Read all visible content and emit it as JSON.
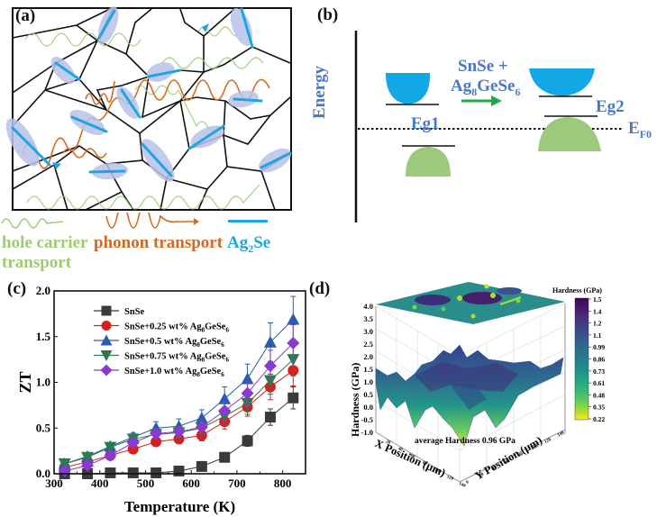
{
  "panels": {
    "a": {
      "label": "(a)",
      "legend": {
        "hole": "hole carrier",
        "hole2": "transport",
        "phonon": "phonon transport",
        "ag2se_main": "Ag",
        "ag2se_sub": "2",
        "ag2se_tail": "Se"
      },
      "colors": {
        "hole": "#9dcb74",
        "phonon": "#d46a1f",
        "ag2se": "#1fa6e0",
        "halo": "#b9c3ea"
      }
    },
    "b": {
      "label": "(b)",
      "y_axis_label": "Energy",
      "reaction_line1": "SnSe +",
      "reaction_main": "Ag",
      "reaction_sub1": "8",
      "reaction_mid": "GeSe",
      "reaction_sub2": "6",
      "eg1": "Eg1",
      "eg2": "Eg2",
      "ef_main": "E",
      "ef_sub": "F0",
      "colors": {
        "text": "#4a78c8",
        "conduction": "#12a8e6",
        "valence": "#9cc97c",
        "arrow": "#1ea84a"
      }
    },
    "c": {
      "label": "(c)"
    },
    "d": {
      "label": "(d)",
      "annotation": "average Hardness 0.96 GPa",
      "z_label": "Hardness (GPa)",
      "x_label": "X Position (μm)",
      "y_label": "Y Position (μm)",
      "z_ticks": [
        "4.0",
        "3.5",
        "3.0",
        "2.5",
        "2.0",
        "1.5",
        "1.0",
        "0.5",
        "0.0",
        "-0.5",
        "-1.0"
      ],
      "x_ticks": [
        "20",
        "40",
        "60",
        "80",
        "100",
        "120",
        "140"
      ],
      "y_ticks": [
        "0",
        "20",
        "40",
        "60",
        "80",
        "100",
        "120",
        "140"
      ],
      "colorbar_title": "Hardness (GPa)",
      "colorbar_ticks": [
        "1.5",
        "1.4",
        "1.2",
        "1.1",
        "0.99",
        "0.86",
        "0.73",
        "0.61",
        "0.48",
        "0.35",
        "0.22"
      ]
    }
  },
  "chart_data": [
    {
      "type": "line",
      "panel": "c",
      "title": "",
      "xlabel": "Temperature (K)",
      "ylabel": "ZT",
      "xlim": [
        300,
        850
      ],
      "ylim": [
        0,
        2.0
      ],
      "xticks": [
        "300",
        "400",
        "500",
        "600",
        "700",
        "800"
      ],
      "yticks": [
        "0.0",
        "0.5",
        "1.0",
        "1.5",
        "2.0"
      ],
      "legend_position": "top-left",
      "x": [
        323,
        373,
        423,
        473,
        523,
        573,
        623,
        673,
        723,
        773,
        823
      ],
      "series": [
        {
          "name": "SnSe",
          "label_main": "SnSe",
          "label_tail": "",
          "color": "#3a3a3a",
          "marker": "square",
          "values": [
            0.0,
            0.0,
            0.01,
            0.01,
            0.01,
            0.03,
            0.08,
            0.18,
            0.36,
            0.62,
            0.83
          ],
          "errors": [
            0,
            0,
            0,
            0,
            0,
            0.01,
            0.02,
            0.03,
            0.06,
            0.09,
            0.12
          ]
        },
        {
          "name": "SnSe+0.25 wt% Ag8GeSe6",
          "label_main": "SnSe+0.25 wt% Ag",
          "label_tail": "GeSe",
          "color": "#d62020",
          "marker": "circle",
          "values": [
            0.07,
            0.13,
            0.2,
            0.27,
            0.35,
            0.38,
            0.42,
            0.57,
            0.73,
            0.95,
            1.13
          ],
          "errors": [
            0.02,
            0.02,
            0.03,
            0.03,
            0.04,
            0.05,
            0.06,
            0.08,
            0.1,
            0.14,
            0.17
          ]
        },
        {
          "name": "SnSe+0.5 wt% Ag8GeSe6",
          "label_main": "SnSe+0.5 wt% Ag",
          "label_tail": "GeSe",
          "color": "#2a5db0",
          "marker": "triangle-up",
          "values": [
            0.11,
            0.19,
            0.3,
            0.4,
            0.5,
            0.52,
            0.61,
            0.82,
            1.04,
            1.44,
            1.69
          ],
          "errors": [
            0.03,
            0.03,
            0.04,
            0.05,
            0.07,
            0.08,
            0.09,
            0.13,
            0.16,
            0.21,
            0.25
          ]
        },
        {
          "name": "SnSe+0.75 wt% Ag8GeSe6",
          "label_main": "SnSe+0.75 wt% Ag",
          "label_tail": "GeSe",
          "color": "#2e7a4e",
          "marker": "triangle-down",
          "values": [
            0.11,
            0.18,
            0.29,
            0.38,
            0.43,
            0.45,
            0.5,
            0.63,
            0.77,
            1.02,
            1.25
          ],
          "errors": [
            0.02,
            0.03,
            0.03,
            0.04,
            0.05,
            0.06,
            0.07,
            0.09,
            0.12,
            0.15,
            0.18
          ]
        },
        {
          "name": "SnSe+1.0 wt% Ag8GeSe6",
          "label_main": "SnSe+1.0 wt% Ag",
          "label_tail": "GeSe",
          "color": "#8a3ad0",
          "marker": "diamond",
          "values": [
            0.03,
            0.09,
            0.2,
            0.34,
            0.44,
            0.46,
            0.51,
            0.69,
            0.88,
            1.18,
            1.43
          ],
          "errors": [
            0.02,
            0.02,
            0.03,
            0.04,
            0.05,
            0.06,
            0.07,
            0.1,
            0.13,
            0.17,
            0.2
          ]
        }
      ],
      "legend_sub1": "8",
      "legend_sub2": "6"
    },
    {
      "type": "heatmap",
      "panel": "d",
      "title": "",
      "xlabel": "X Position (μm)",
      "ylabel": "Y Position (μm)",
      "zlabel": "Hardness (GPa)",
      "zlim": [
        -1.0,
        4.0
      ],
      "colorbar_range": [
        0.22,
        1.5
      ],
      "colormap": "viridis",
      "annotation": "average Hardness 0.96 GPa",
      "mean": 0.96
    }
  ]
}
